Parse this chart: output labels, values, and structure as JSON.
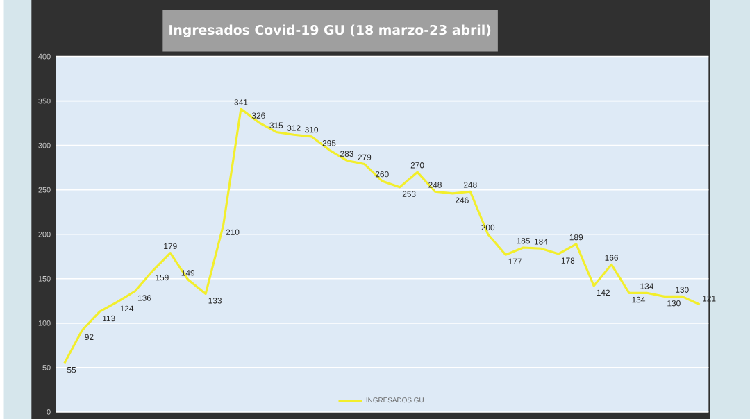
{
  "chart_data": {
    "type": "line",
    "title": "Ingresados  Covid-19  GU  (18  marzo-23  abril)",
    "categories": [
      null,
      null,
      null,
      null,
      null,
      null,
      null,
      null,
      null,
      null,
      null,
      null,
      null,
      null,
      null,
      null,
      null,
      null,
      null,
      null,
      null,
      null,
      null,
      null,
      null,
      null,
      null,
      null,
      null,
      null,
      null,
      null,
      null,
      null,
      null,
      null,
      null
    ],
    "series": [
      {
        "name": "INGRESADOS GU",
        "color": "#f2ee2c",
        "values": [
          55,
          92,
          113,
          124,
          136,
          159,
          179,
          149,
          133,
          210,
          341,
          326,
          315,
          312,
          310,
          295,
          283,
          279,
          260,
          253,
          270,
          248,
          246,
          248,
          200,
          177,
          185,
          184,
          178,
          189,
          142,
          166,
          134,
          134,
          130,
          130,
          121
        ]
      }
    ],
    "ylim": [
      0,
      400
    ],
    "yticks": [
      0,
      50,
      100,
      150,
      200,
      250,
      300,
      350,
      400
    ],
    "grid": "y",
    "legend": "bottom",
    "data_labels": true,
    "tick_labels": "y",
    "marker": "none"
  }
}
